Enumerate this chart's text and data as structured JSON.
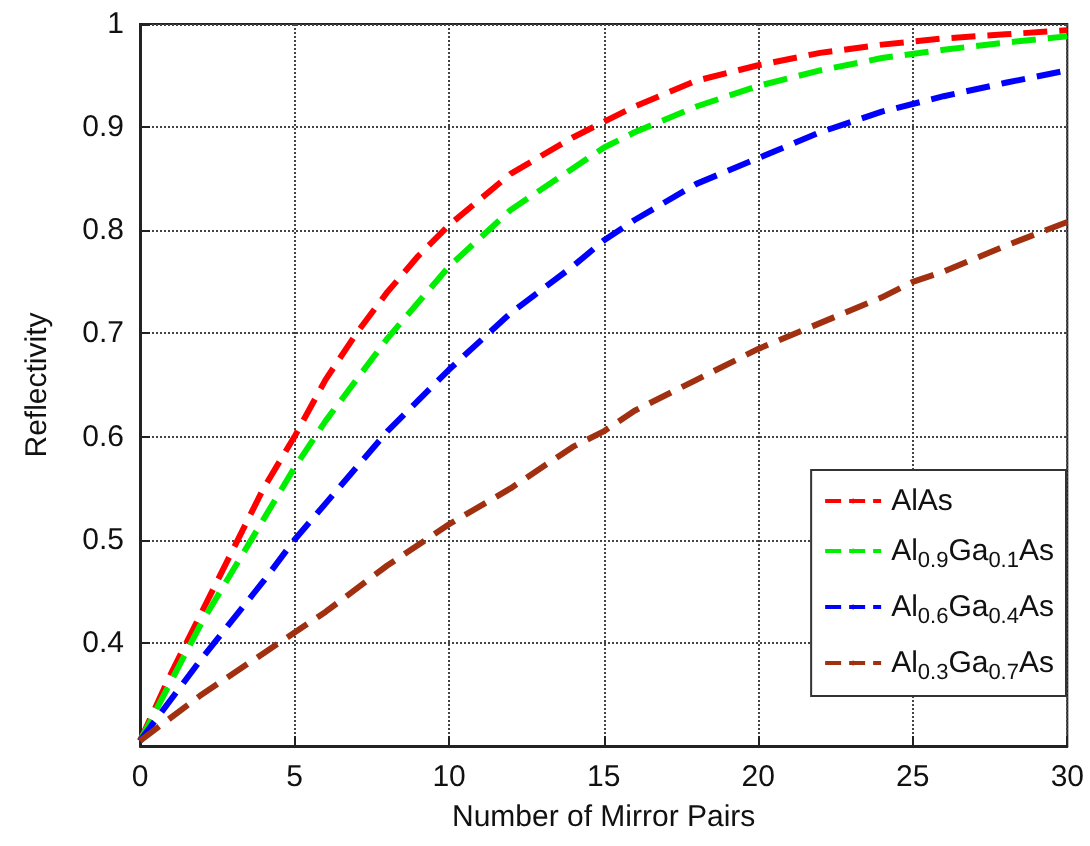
{
  "chart_data": {
    "type": "line",
    "xlabel": "Number of Mirror Pairs",
    "ylabel": "Reflectivity",
    "xlim": [
      0,
      30
    ],
    "xticks": [
      0,
      5,
      10,
      15,
      20,
      25,
      30
    ],
    "ylim": [
      0.3,
      1
    ],
    "yticks": [
      0.4,
      0.5,
      0.6,
      0.7,
      0.8,
      0.9,
      1
    ],
    "grid": true,
    "legend": "bottom right",
    "marker": "none",
    "line_style": "dashed",
    "series": [
      {
        "name": "AlAs",
        "color": "#ff0000",
        "x": [
          0,
          1,
          2,
          3,
          4,
          5,
          6,
          7,
          8,
          9,
          10,
          12,
          14,
          15,
          16,
          18,
          20,
          22,
          24,
          26,
          28,
          30
        ],
        "values": [
          0.305,
          0.37,
          0.43,
          0.49,
          0.55,
          0.6,
          0.655,
          0.7,
          0.74,
          0.775,
          0.805,
          0.855,
          0.89,
          0.905,
          0.92,
          0.945,
          0.96,
          0.972,
          0.98,
          0.986,
          0.99,
          0.994
        ]
      },
      {
        "name": "Al$_{0.9}$Ga$_{0.1}$As",
        "color": "#00ee00",
        "x": [
          0,
          2,
          4,
          5,
          6,
          8,
          10,
          12,
          14,
          15,
          16,
          18,
          20,
          22,
          24,
          26,
          28,
          30
        ],
        "values": [
          0.305,
          0.42,
          0.52,
          0.57,
          0.615,
          0.695,
          0.765,
          0.82,
          0.86,
          0.88,
          0.895,
          0.92,
          0.94,
          0.955,
          0.967,
          0.975,
          0.982,
          0.988
        ]
      },
      {
        "name": "Al$_{0.6}$Ga$_{0.4}$As",
        "color": "#0000ff",
        "x": [
          0,
          2,
          4,
          5,
          6,
          8,
          10,
          12,
          14,
          15,
          16,
          18,
          20,
          22,
          24,
          26,
          28,
          30
        ],
        "values": [
          0.305,
          0.385,
          0.46,
          0.5,
          0.535,
          0.605,
          0.665,
          0.72,
          0.765,
          0.79,
          0.81,
          0.845,
          0.87,
          0.895,
          0.915,
          0.93,
          0.943,
          0.955
        ]
      },
      {
        "name": "Al$_{0.3}$Ga$_{0.7}$As",
        "color": "#a0300f",
        "x": [
          0,
          2,
          4,
          5,
          6,
          8,
          10,
          12,
          14,
          15,
          16,
          18,
          20,
          22,
          24,
          25,
          26,
          28,
          30
        ],
        "values": [
          0.305,
          0.35,
          0.39,
          0.41,
          0.43,
          0.475,
          0.515,
          0.55,
          0.59,
          0.605,
          0.625,
          0.655,
          0.685,
          0.71,
          0.735,
          0.75,
          0.76,
          0.785,
          0.808
        ]
      }
    ]
  }
}
